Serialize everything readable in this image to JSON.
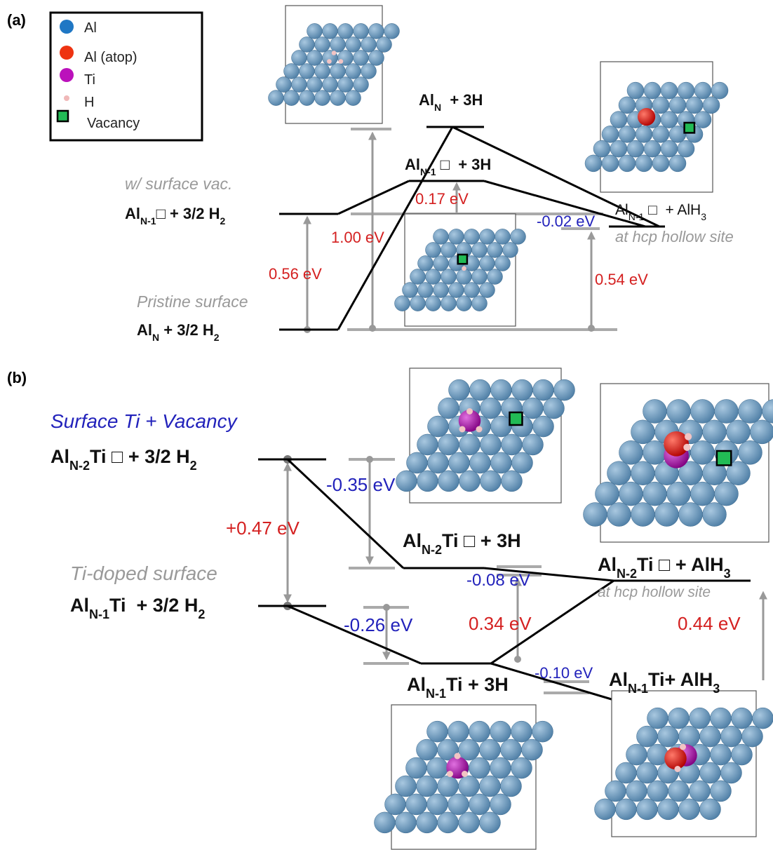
{
  "panels": [
    "(a)",
    "(b)"
  ],
  "legend": [
    "Al",
    "Al (atop)",
    "Ti",
    "H",
    "Vacancy"
  ],
  "labels": [
    [
      "w/ surface vac."
    ],
    [
      "Al",
      "N-1",
      "□ + 3/2 H",
      "2"
    ],
    [
      "Pristine surface"
    ],
    [
      "Al",
      "N",
      " + 3/2 H",
      "2"
    ],
    [
      "Al",
      "N",
      "  + 3H"
    ],
    [
      "Al",
      "N-1",
      " □  + 3H"
    ],
    [
      "Al",
      "N-1",
      " □  + AlH",
      "3"
    ],
    [
      "at hcp hollow site"
    ],
    [
      "0.56 eV"
    ],
    [
      "1.00 eV"
    ],
    [
      "0.17 eV"
    ],
    [
      "-0.02 eV"
    ],
    [
      "0.54 eV"
    ],
    [
      "Surface Ti + Vacancy"
    ],
    [
      "Al",
      "N-2",
      "Ti □ + 3/2 H",
      "2"
    ],
    [
      "Ti-doped surface"
    ],
    [
      "Al",
      "N-1",
      "Ti  + 3/2 H",
      "2"
    ],
    [
      "Al",
      "N-2",
      "Ti □ + 3H"
    ],
    [
      "Al",
      "N-2",
      "Ti □ + AlH",
      "3"
    ],
    [
      "at hcp hollow site"
    ],
    [
      "Al",
      "N-1",
      "Ti + 3H"
    ],
    [
      "Al",
      "N-1",
      "Ti+ AlH",
      "3"
    ],
    [
      "-0.35 eV"
    ],
    [
      "+0.47 eV"
    ],
    [
      "-0.08 eV"
    ],
    [
      "-0.26 eV"
    ],
    [
      "0.34 eV"
    ],
    [
      "0.44 eV"
    ],
    [
      "-0.10 eV"
    ]
  ]
}
